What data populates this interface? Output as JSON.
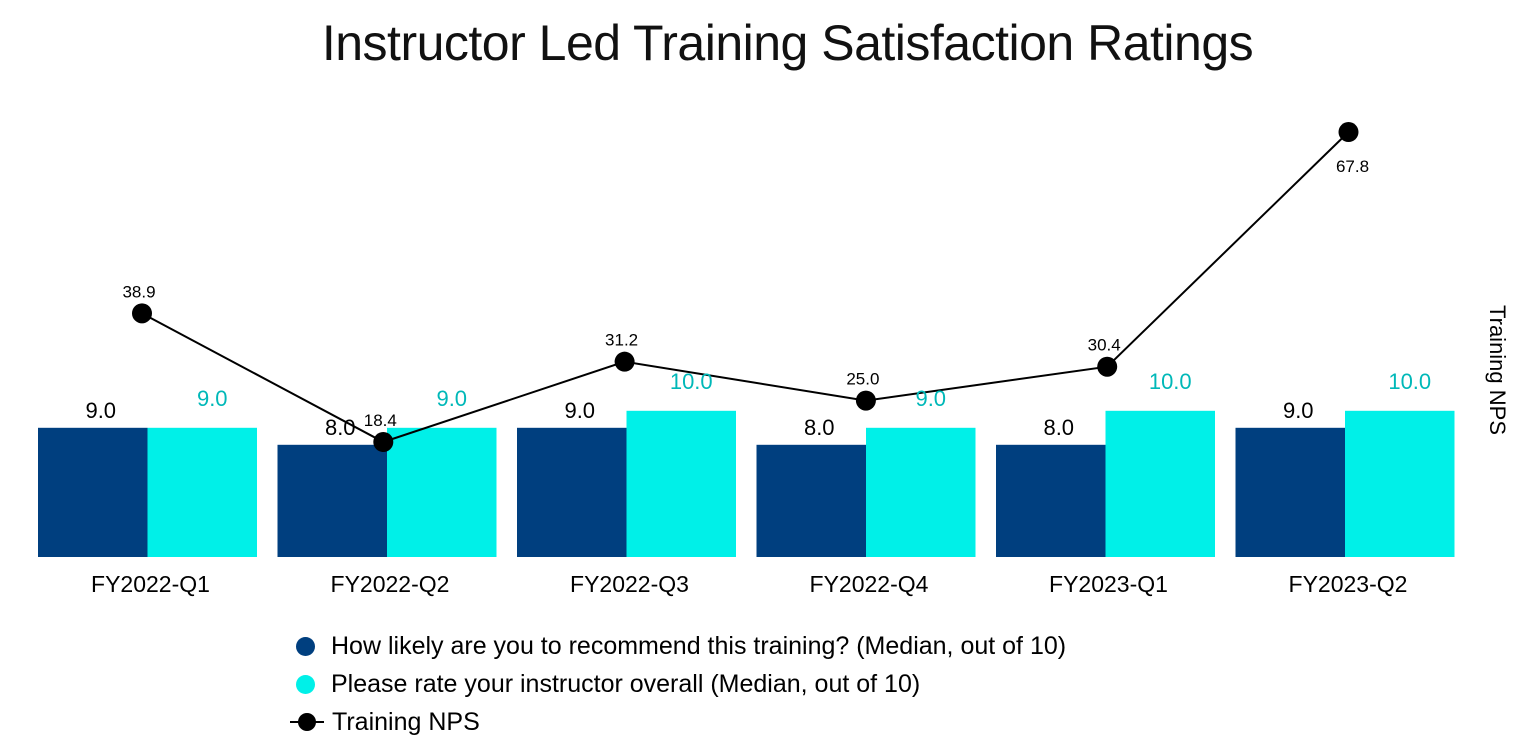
{
  "chart_data": {
    "type": "bar",
    "title": "Instructor Led Training Satisfaction Ratings",
    "categories": [
      "FY2022-Q1",
      "FY2022-Q2",
      "FY2022-Q3",
      "FY2022-Q4",
      "FY2023-Q1",
      "FY2023-Q2"
    ],
    "series": [
      {
        "name": "How likely are you to recommend this training? (Median, out of 10)",
        "type": "bar",
        "color": "#003f7f",
        "values": [
          9.0,
          8.0,
          9.0,
          8.0,
          8.0,
          9.0
        ],
        "labels": [
          "9.0",
          "8.0",
          "9.0",
          "8.0",
          "8.0",
          "9.0"
        ]
      },
      {
        "name": "Please rate your instructor overall (Median, out of 10)",
        "type": "bar",
        "color": "#00f0e8",
        "label_color": "#00b8b8",
        "values": [
          9.0,
          9.0,
          10.0,
          9.0,
          10.0,
          10.0
        ],
        "labels": [
          "9.0",
          "9.0",
          "10.0",
          "9.0",
          "10.0",
          "10.0"
        ]
      },
      {
        "name": "Training NPS",
        "type": "line",
        "axis": "secondary",
        "color": "#000000",
        "values": [
          38.9,
          18.4,
          31.2,
          25.0,
          30.4,
          67.8
        ],
        "labels": [
          "38.9",
          "18.4",
          "31.2",
          "25.0",
          "30.4",
          "67.8"
        ]
      }
    ],
    "y2label": "Training NPS",
    "legend": "bottom-left",
    "grid": false
  }
}
